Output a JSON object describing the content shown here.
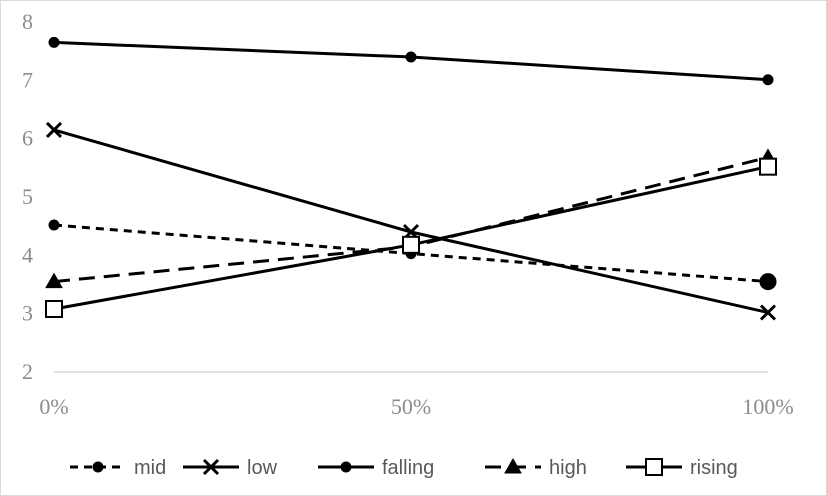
{
  "chart_data": {
    "type": "line",
    "x": [
      "0%",
      "50%",
      "100%"
    ],
    "ylim": [
      2,
      8
    ],
    "yticks": [
      "2",
      "3",
      "4",
      "5",
      "6",
      "7",
      "8"
    ],
    "grid": false,
    "legend_position": "bottom",
    "series": [
      {
        "name": "mid",
        "values": [
          4.52,
          4.03,
          3.55
        ],
        "marker": "circle",
        "dash": "short",
        "marker_size": "small"
      },
      {
        "name": "low",
        "values": [
          6.15,
          4.4,
          3.02
        ],
        "marker": "x",
        "dash": "solid"
      },
      {
        "name": "falling",
        "values": [
          7.65,
          7.4,
          7.01
        ],
        "marker": "circle",
        "dash": "solid"
      },
      {
        "name": "high",
        "values": [
          3.55,
          4.15,
          5.68
        ],
        "marker": "triangle",
        "dash": "long"
      },
      {
        "name": "rising",
        "values": [
          3.08,
          4.18,
          5.52
        ],
        "marker": "square-open",
        "dash": "solid"
      }
    ],
    "last_point_large_marker": "mid"
  },
  "colors": {
    "line": "#000000",
    "tick_text": "#8c8c8c",
    "legend_text": "#595959",
    "axis": "#d9d9d9"
  }
}
